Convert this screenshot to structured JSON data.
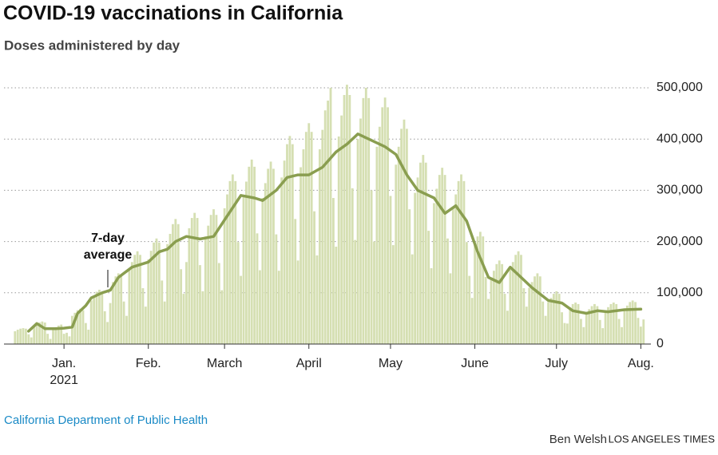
{
  "chart_data": {
    "type": "bar_line",
    "title": "COVID-19 vaccinations in California",
    "subtitle": "Doses administered by day",
    "annotation": [
      "7-day",
      "average"
    ],
    "source": "California Department of Public Health",
    "credit": "Ben Welsh",
    "publisher": "LOS ANGELES TIMES",
    "x_sublabel": "2021",
    "xlim": [
      -20,
      216
    ],
    "xticks": [
      {
        "value": 0,
        "label": "Jan."
      },
      {
        "value": 31,
        "label": "Feb."
      },
      {
        "value": 59,
        "label": "March"
      },
      {
        "value": 90,
        "label": "April"
      },
      {
        "value": 120,
        "label": "May"
      },
      {
        "value": 151,
        "label": "June"
      },
      {
        "value": 181,
        "label": "July"
      },
      {
        "value": 212,
        "label": "Aug."
      }
    ],
    "ylim": [
      0,
      500000
    ],
    "yticks": [
      0,
      {
        "value": 100000,
        "label": "100,000"
      },
      {
        "value": 200000,
        "label": "200,000"
      },
      {
        "value": 300000,
        "label": "300,000"
      },
      {
        "value": 400000,
        "label": "400,000"
      },
      {
        "value": 500000,
        "label": "500,000"
      }
    ],
    "grid": true,
    "series": [
      {
        "kind": "bar",
        "color": "#d5dfb2",
        "x": [
          -18,
          -17,
          -16,
          -15,
          -14,
          -13,
          -12,
          -11,
          -10,
          -9,
          -8,
          -7,
          -6,
          -5,
          -4,
          -3,
          -2,
          -1,
          0,
          1,
          2,
          3,
          4,
          5,
          6,
          7,
          8,
          9,
          10,
          11,
          12,
          13,
          14,
          15,
          16,
          17,
          18,
          19,
          20,
          21,
          22,
          23,
          24,
          25,
          26,
          27,
          28,
          29,
          30,
          31,
          32,
          33,
          34,
          35,
          36,
          37,
          38,
          39,
          40,
          41,
          42,
          43,
          44,
          45,
          46,
          47,
          48,
          49,
          50,
          51,
          52,
          53,
          54,
          55,
          56,
          57,
          58,
          59,
          60,
          61,
          62,
          63,
          64,
          65,
          66,
          67,
          68,
          69,
          70,
          71,
          72,
          73,
          74,
          75,
          76,
          77,
          78,
          79,
          80,
          81,
          82,
          83,
          84,
          85,
          86,
          87,
          88,
          89,
          90,
          91,
          92,
          93,
          94,
          95,
          96,
          97,
          98,
          99,
          100,
          101,
          102,
          103,
          104,
          105,
          106,
          107,
          108,
          109,
          110,
          111,
          112,
          113,
          114,
          115,
          116,
          117,
          118,
          119,
          120,
          121,
          122,
          123,
          124,
          125,
          126,
          127,
          128,
          129,
          130,
          131,
          132,
          133,
          134,
          135,
          136,
          137,
          138,
          139,
          140,
          141,
          142,
          143,
          144,
          145,
          146,
          147,
          148,
          149,
          150,
          151,
          152,
          153,
          154,
          155,
          156,
          157,
          158,
          159,
          160,
          161,
          162,
          163,
          164,
          165,
          166,
          167,
          168,
          169,
          170,
          171,
          172,
          173,
          174,
          175,
          176,
          177,
          178,
          179,
          180,
          181,
          182,
          183,
          184,
          185,
          186,
          187,
          188,
          189,
          190,
          191,
          192,
          193,
          194,
          195,
          196,
          197,
          198,
          199,
          200,
          201,
          202,
          203,
          204,
          205,
          206,
          207,
          208,
          209,
          210,
          211,
          212,
          213
        ],
        "values": [
          25000,
          28000,
          30000,
          31000,
          30000,
          19000,
          13000,
          35000,
          39000,
          42000,
          44000,
          42000,
          20000,
          10000,
          30000,
          33000,
          36000,
          38000,
          20000,
          22000,
          15000,
          55000,
          61000,
          66000,
          69000,
          66000,
          41000,
          28000,
          85000,
          94000,
          102000,
          106000,
          102000,
          64000,
          43000,
          80000,
          121000,
          132000,
          138000,
          132000,
          83000,
          55000,
          145000,
          160000,
          174000,
          181000,
          174000,
          109000,
          73000,
          165000,
          182000,
          198000,
          206000,
          198000,
          124000,
          83000,
          195000,
          215000,
          234000,
          244000,
          234000,
          146000,
          98000,
          160000,
          226000,
          246000,
          256000,
          246000,
          154000,
          103000,
          210000,
          231000,
          252000,
          263000,
          252000,
          158000,
          105000,
          265000,
          292000,
          318000,
          331000,
          318000,
          199000,
          133000,
          288000,
          317000,
          346000,
          360000,
          346000,
          216000,
          144000,
          285000,
          314000,
          342000,
          356000,
          342000,
          214000,
          143000,
          325000,
          358000,
          390000,
          406000,
          390000,
          244000,
          163000,
          345000,
          380000,
          414000,
          431000,
          414000,
          259000,
          173000,
          380000,
          418000,
          456000,
          475000,
          500000,
          285000,
          190000,
          405000,
          446000,
          486000,
          506000,
          486000,
          304000,
          203000,
          400000,
          440000,
          480000,
          500000,
          480000,
          300000,
          200000,
          385000,
          424000,
          462000,
          481000,
          462000,
          289000,
          193000,
          350000,
          385000,
          420000,
          438000,
          420000,
          263000,
          175000,
          295000,
          325000,
          354000,
          369000,
          354000,
          221000,
          148000,
          275000,
          303000,
          330000,
          344000,
          330000,
          206000,
          138000,
          265000,
          292000,
          318000,
          331000,
          318000,
          199000,
          133000,
          90000,
          193000,
          210000,
          219000,
          210000,
          131000,
          88000,
          130000,
          143000,
          156000,
          163000,
          156000,
          98000,
          65000,
          145000,
          160000,
          174000,
          181000,
          174000,
          109000,
          73000,
          110000,
          121000,
          132000,
          138000,
          132000,
          83000,
          55000,
          82000,
          90000,
          98000,
          103000,
          98000,
          62000,
          41000,
          40000,
          72000,
          78000,
          81000,
          78000,
          49000,
          33000,
          62000,
          68000,
          74000,
          78000,
          74000,
          47000,
          31000,
          65000,
          72000,
          78000,
          81000,
          78000,
          49000,
          33000,
          68000,
          75000,
          82000,
          85000,
          82000,
          51000,
          34000,
          48000
        ]
      },
      {
        "kind": "line",
        "color": "#8a9e50",
        "x": [
          -13,
          -10,
          -7,
          -3,
          0,
          3,
          5,
          8,
          10,
          14,
          17,
          20,
          25,
          31,
          35,
          38,
          41,
          45,
          50,
          55,
          60,
          65,
          70,
          73,
          78,
          82,
          86,
          90,
          95,
          100,
          104,
          108,
          112,
          118,
          122,
          126,
          130,
          136,
          140,
          144,
          148,
          152,
          156,
          160,
          164,
          168,
          172,
          178,
          183,
          187,
          192,
          196,
          200,
          206,
          212
        ],
        "values": [
          25000,
          40000,
          30000,
          30000,
          31000,
          33000,
          60000,
          75000,
          90000,
          100000,
          105000,
          130000,
          150000,
          160000,
          180000,
          185000,
          200000,
          210000,
          205000,
          210000,
          250000,
          290000,
          285000,
          280000,
          300000,
          325000,
          330000,
          330000,
          345000,
          375000,
          390000,
          410000,
          400000,
          385000,
          370000,
          330000,
          300000,
          285000,
          255000,
          270000,
          240000,
          180000,
          130000,
          120000,
          150000,
          130000,
          110000,
          85000,
          80000,
          65000,
          60000,
          65000,
          63000,
          67000,
          68000
        ]
      }
    ]
  }
}
